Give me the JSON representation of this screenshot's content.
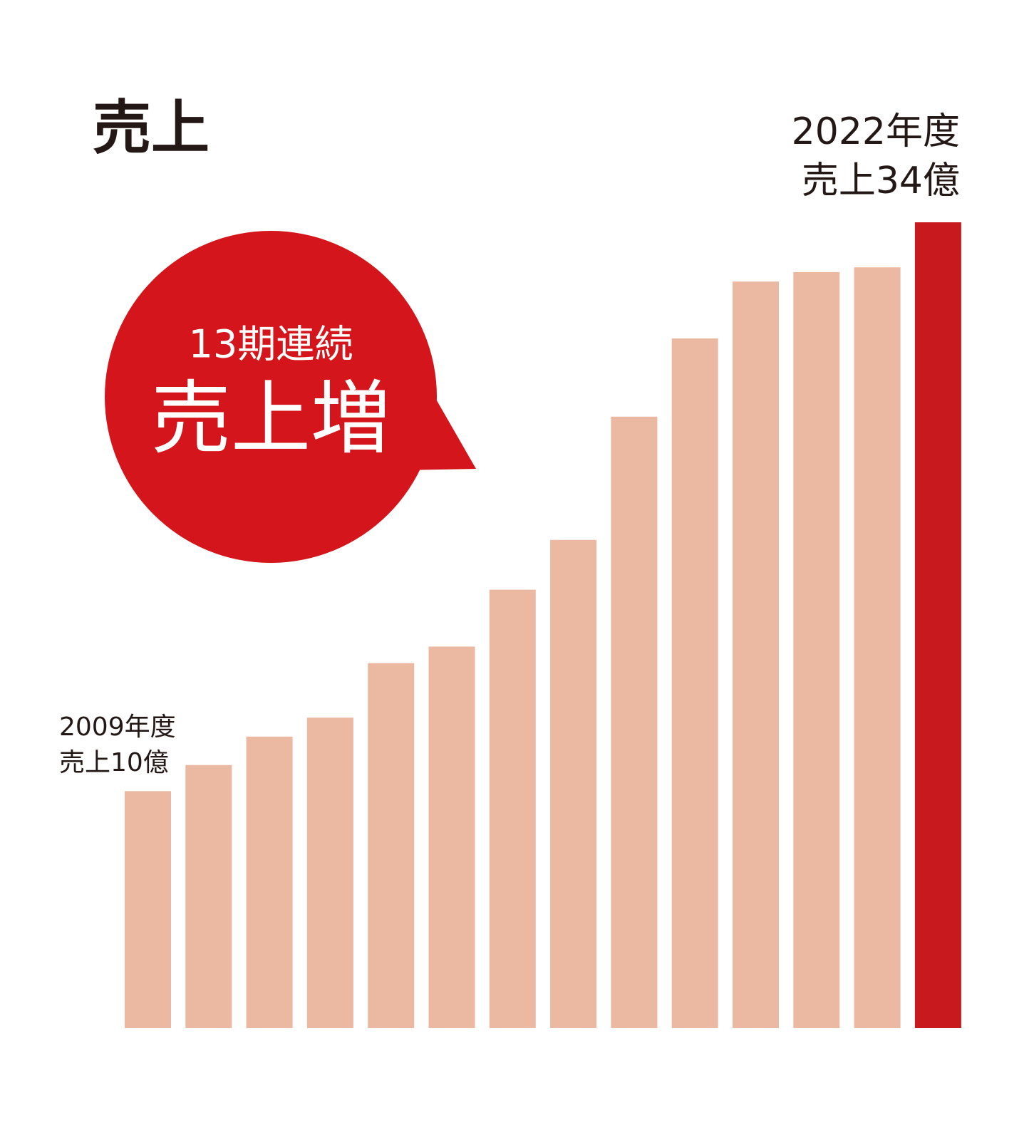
{
  "chart_data": {
    "type": "bar",
    "title": "売上",
    "categories": [
      "2009年度",
      null,
      null,
      null,
      null,
      null,
      null,
      null,
      null,
      null,
      null,
      null,
      null,
      "2022年度"
    ],
    "values": [
      10,
      11.1,
      12.3,
      13.1,
      15.4,
      16.1,
      18.5,
      20.6,
      25.8,
      29.1,
      31.5,
      31.9,
      32.1,
      34
    ],
    "value_labels": [
      "売上10億",
      null,
      null,
      null,
      null,
      null,
      null,
      null,
      null,
      null,
      null,
      null,
      null,
      "売上34億"
    ],
    "colors": [
      "#ebb9a2",
      "#ebb9a2",
      "#ebb9a2",
      "#ebb9a2",
      "#ebb9a2",
      "#ebb9a2",
      "#ebb9a2",
      "#ebb9a2",
      "#ebb9a2",
      "#ebb9a2",
      "#ebb9a2",
      "#ebb9a2",
      "#ebb9a2",
      "#c8191e"
    ],
    "callout": {
      "line1": "13期連続",
      "line2": "売上増",
      "color": "#d4151b"
    }
  }
}
